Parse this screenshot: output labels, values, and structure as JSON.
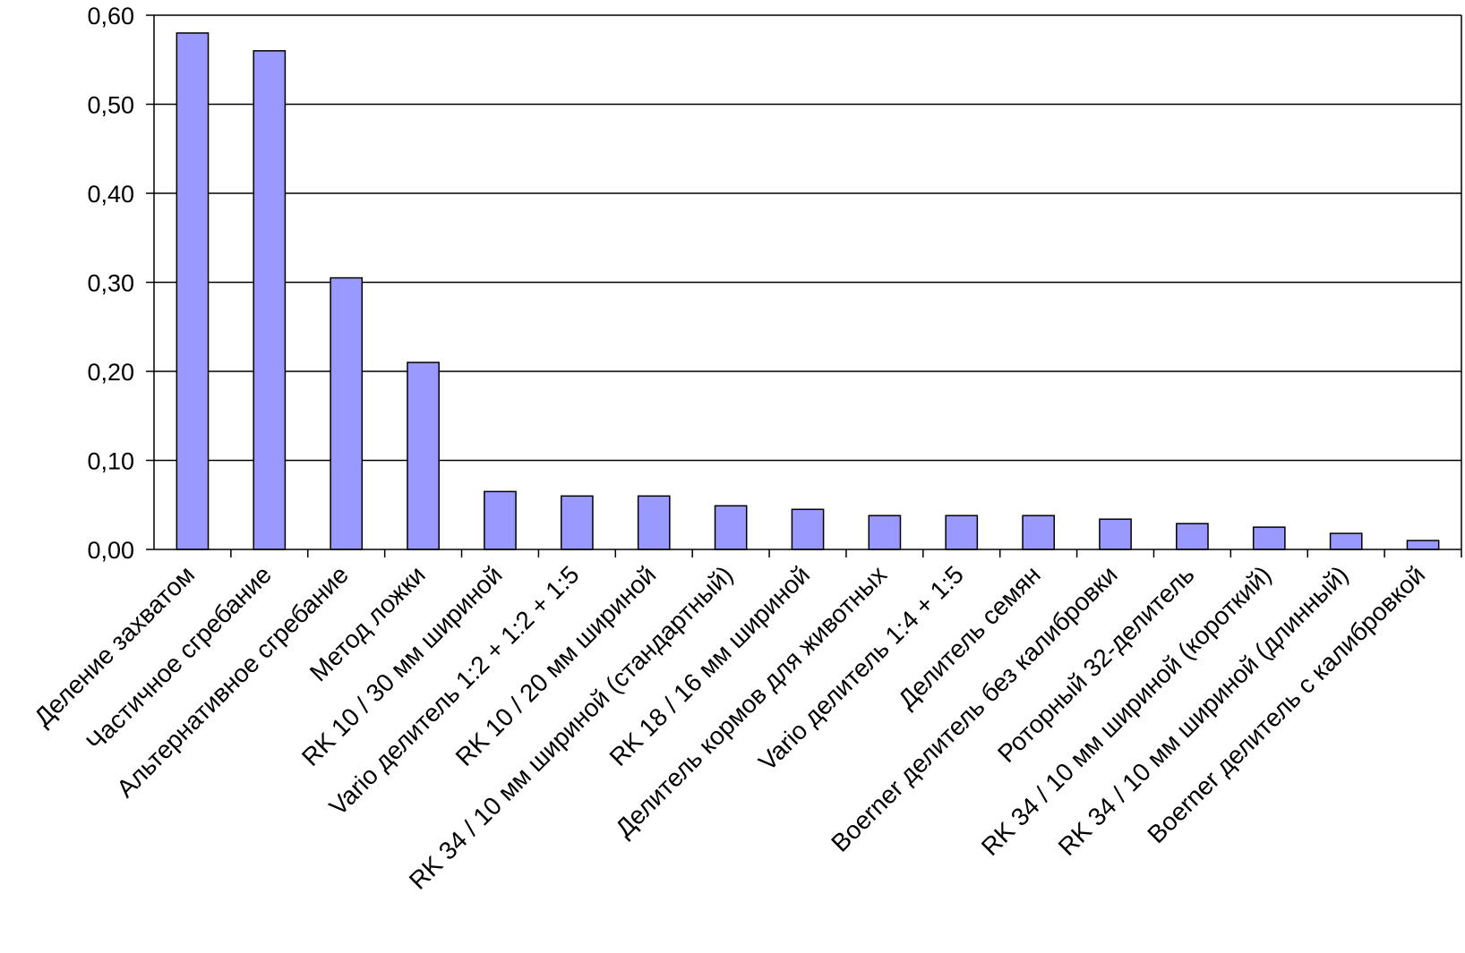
{
  "chart_data": {
    "type": "bar",
    "categories": [
      "Деление захватом",
      "Частичное сгребание",
      "Альтернативное сгребание",
      "Метод ложки",
      "RK 10 / 30 мм шириной",
      "Vario делитель 1:2 + 1:2 + 1:5",
      "RK 10 / 20 мм шириной",
      "RK 34 / 10 мм шириной (стандартный)",
      "RK 18 / 16 мм шириной",
      "Делитель кормов для животных",
      "Vario делитель 1:4 + 1:5",
      "Делитель семян",
      "Boerner делитель  без калибровки",
      "Роторный 32-делитель",
      "RK 34 / 10 мм шириной (короткий)",
      "RK 34 / 10 мм шириной (длинный)",
      "Boerner делитель с калибровкой"
    ],
    "values": [
      0.58,
      0.56,
      0.305,
      0.21,
      0.065,
      0.06,
      0.06,
      0.049,
      0.045,
      0.038,
      0.038,
      0.038,
      0.034,
      0.029,
      0.025,
      0.018,
      0.01
    ],
    "ylim": [
      0,
      0.6
    ],
    "yticks": [
      "0,00",
      "0,10",
      "0,20",
      "0,30",
      "0,40",
      "0,50",
      "0,60"
    ],
    "grid": true,
    "legend": "none",
    "title": "",
    "xlabel": "",
    "ylabel": "",
    "colors": {
      "bar": "#9999ff",
      "bar_stroke": "#000000",
      "grid": "#000000",
      "axis": "#000000"
    }
  }
}
